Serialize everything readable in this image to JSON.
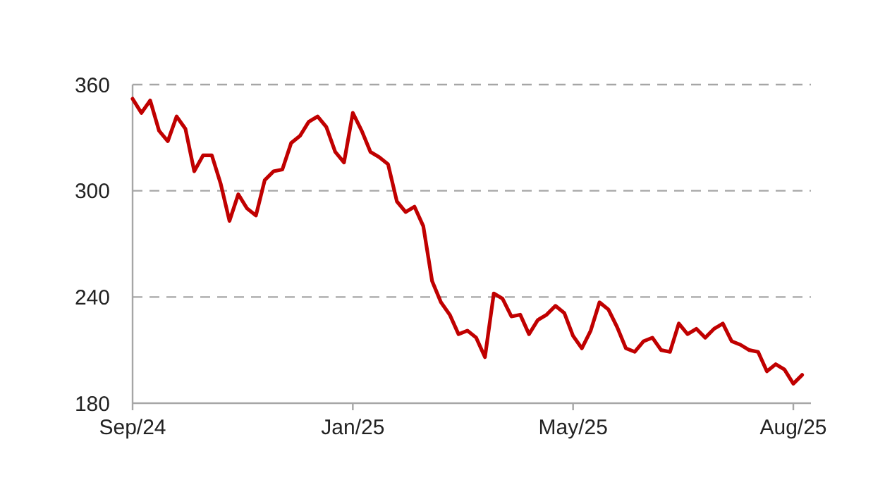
{
  "chart_data": {
    "type": "line",
    "categories": [
      "Sep/24",
      null,
      null,
      null,
      null,
      null,
      null,
      null,
      null,
      null,
      null,
      null,
      null,
      null,
      null,
      null,
      null,
      null,
      null,
      null,
      null,
      null,
      null,
      null,
      null,
      "Jan/25",
      null,
      null,
      null,
      null,
      null,
      null,
      null,
      null,
      null,
      null,
      null,
      null,
      null,
      null,
      null,
      null,
      null,
      null,
      null,
      null,
      null,
      null,
      null,
      null,
      "May/25",
      null,
      null,
      null,
      null,
      null,
      null,
      null,
      null,
      null,
      null,
      null,
      null,
      null,
      null,
      null,
      null,
      null,
      null,
      null,
      null,
      null,
      null,
      null,
      null,
      "Aug/25",
      null
    ],
    "series": [
      {
        "color": "#c00000",
        "values": [
          352,
          344,
          351,
          334,
          328,
          342,
          335,
          311,
          320,
          320,
          304,
          283,
          298,
          290,
          286,
          306,
          311,
          312,
          327,
          331,
          339,
          342,
          336,
          322,
          316,
          344,
          334,
          322,
          319,
          315,
          294,
          288,
          291,
          280,
          249,
          237,
          230,
          219,
          221,
          217,
          206,
          242,
          239,
          229,
          230,
          219,
          227,
          230,
          235,
          231,
          218,
          211,
          221,
          237,
          233,
          223,
          211,
          209,
          215,
          217,
          210,
          209,
          225,
          219,
          222,
          217,
          222,
          225,
          215,
          213,
          210,
          209,
          198,
          202,
          199,
          191,
          196
        ]
      }
    ],
    "ylim": [
      180,
      360
    ],
    "yticks": [
      180,
      240,
      300,
      360
    ],
    "grid": "y",
    "line_style": "solid",
    "marker": "none"
  }
}
